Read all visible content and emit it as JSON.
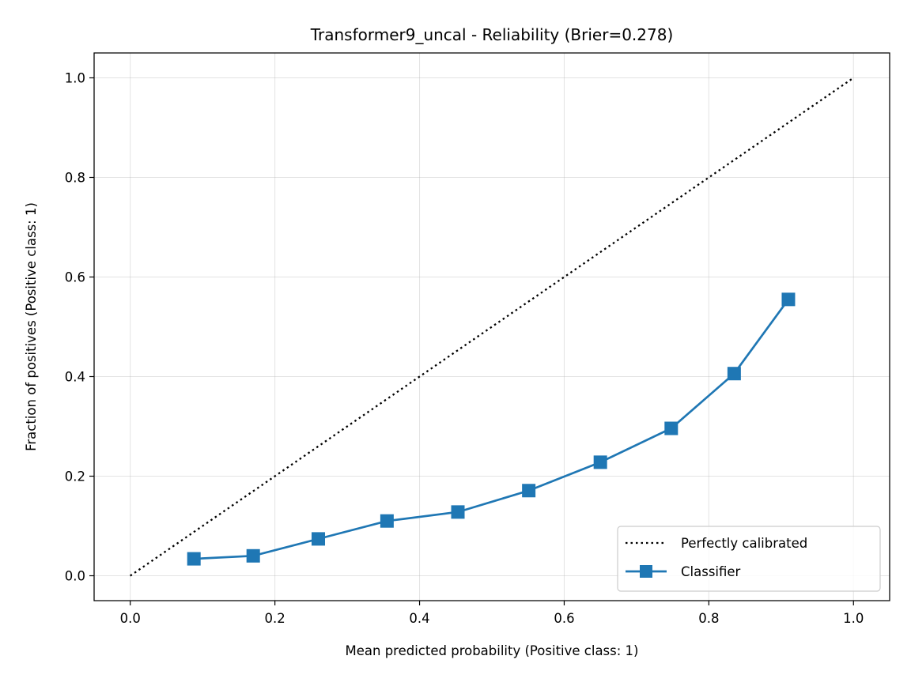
{
  "chart_data": {
    "type": "line",
    "title": "Transformer9_uncal - Reliability (Brier=0.278)",
    "xlabel": "Mean predicted probability (Positive class: 1)",
    "ylabel": "Fraction of positives (Positive class: 1)",
    "xlim": [
      -0.05,
      1.05
    ],
    "ylim": [
      -0.05,
      1.05
    ],
    "xticks": [
      0.0,
      0.2,
      0.4,
      0.6,
      0.8,
      1.0
    ],
    "yticks": [
      0.0,
      0.2,
      0.4,
      0.6,
      0.8,
      1.0
    ],
    "xtick_labels": [
      "0.0",
      "0.2",
      "0.4",
      "0.6",
      "0.8",
      "1.0"
    ],
    "ytick_labels": [
      "0.0",
      "0.2",
      "0.4",
      "0.6",
      "0.8",
      "1.0"
    ],
    "grid": true,
    "legend_position": "lower-right",
    "series": [
      {
        "name": "Perfectly calibrated",
        "style": "dotted",
        "color": "#000000",
        "marker": "none",
        "x": [
          0.0,
          1.0
        ],
        "y": [
          0.0,
          1.0
        ]
      },
      {
        "name": "Classifier",
        "style": "solid",
        "color": "#1f77b4",
        "marker": "square",
        "x": [
          0.088,
          0.17,
          0.26,
          0.355,
          0.453,
          0.551,
          0.65,
          0.748,
          0.835,
          0.91
        ],
        "y": [
          0.034,
          0.04,
          0.074,
          0.11,
          0.128,
          0.171,
          0.228,
          0.296,
          0.406,
          0.555
        ]
      }
    ]
  }
}
